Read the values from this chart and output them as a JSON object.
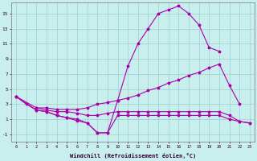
{
  "xlabel": "Windchill (Refroidissement éolien,°C)",
  "background_color": "#c8eeed",
  "grid_color": "#9ecece",
  "line_color": "#aa00aa",
  "xlim_min": -0.5,
  "xlim_max": 23.5,
  "ylim_min": -2.0,
  "ylim_max": 16.5,
  "xticks": [
    0,
    1,
    2,
    3,
    4,
    5,
    6,
    7,
    8,
    9,
    10,
    11,
    12,
    13,
    14,
    15,
    16,
    17,
    18,
    19,
    20,
    21,
    22,
    23
  ],
  "yticks": [
    -1,
    1,
    3,
    5,
    7,
    9,
    11,
    13,
    15
  ],
  "line1_x": [
    0,
    1,
    2,
    3,
    4,
    5,
    6,
    7,
    8,
    9,
    10,
    11,
    12,
    13,
    14,
    15,
    16,
    17,
    18,
    19,
    20
  ],
  "line1_y": [
    4.0,
    3.0,
    2.2,
    2.0,
    1.5,
    1.2,
    0.8,
    0.5,
    -0.8,
    -0.8,
    3.5,
    8.0,
    11.0,
    13.0,
    15.0,
    15.5,
    16.0,
    15.0,
    13.5,
    10.5,
    10.0
  ],
  "line2_x": [
    0,
    2,
    3,
    4,
    5,
    6,
    7,
    8,
    9,
    10,
    11,
    12,
    13,
    14,
    15,
    16,
    17,
    18,
    19,
    20,
    21,
    22
  ],
  "line2_y": [
    4.0,
    2.5,
    2.5,
    2.3,
    2.3,
    2.3,
    2.5,
    3.0,
    3.2,
    3.5,
    3.8,
    4.2,
    4.8,
    5.2,
    5.8,
    6.2,
    6.8,
    7.2,
    7.8,
    8.3,
    5.5,
    3.0
  ],
  "line3_x": [
    2,
    3,
    4,
    5,
    6,
    7,
    8,
    9,
    10,
    11,
    12,
    13,
    14,
    15,
    16,
    17,
    18,
    19,
    20,
    21,
    22,
    23
  ],
  "line3_y": [
    2.5,
    2.2,
    2.0,
    2.0,
    1.8,
    1.5,
    1.5,
    1.8,
    2.0,
    2.0,
    2.0,
    2.0,
    2.0,
    2.0,
    2.0,
    2.0,
    2.0,
    2.0,
    2.0,
    1.5,
    0.7,
    0.5
  ],
  "line4_x": [
    0,
    2,
    3,
    4,
    5,
    6,
    7,
    8,
    9,
    10,
    11,
    12,
    13,
    14,
    15,
    16,
    17,
    18,
    19,
    20,
    21,
    22,
    23
  ],
  "line4_y": [
    4.0,
    2.2,
    2.0,
    1.5,
    1.2,
    1.0,
    0.5,
    -0.8,
    -0.8,
    1.5,
    1.5,
    1.5,
    1.5,
    1.5,
    1.5,
    1.5,
    1.5,
    1.5,
    1.5,
    1.5,
    1.0,
    0.7,
    0.5
  ]
}
